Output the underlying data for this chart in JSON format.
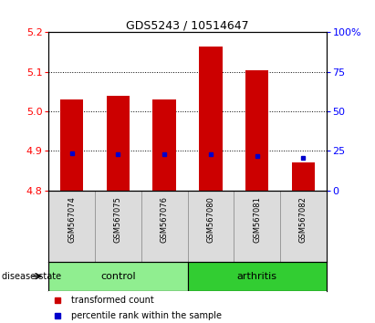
{
  "title": "GDS5243 / 10514647",
  "samples": [
    "GSM567074",
    "GSM567075",
    "GSM567076",
    "GSM567080",
    "GSM567081",
    "GSM567082"
  ],
  "red_bar_top": [
    5.03,
    5.04,
    5.03,
    5.165,
    5.105,
    4.872
  ],
  "red_bar_bottom": 4.8,
  "blue_marker_y": [
    4.895,
    4.892,
    4.892,
    4.892,
    4.887,
    4.883
  ],
  "ylim_left": [
    4.8,
    5.2
  ],
  "ylim_right": [
    0,
    100
  ],
  "yticks_left": [
    4.8,
    4.9,
    5.0,
    5.1,
    5.2
  ],
  "yticks_right": [
    0,
    25,
    50,
    75,
    100
  ],
  "ytick_labels_right": [
    "0",
    "25",
    "50",
    "75",
    "100%"
  ],
  "control_color": "#90EE90",
  "arthritis_color": "#32CD32",
  "group_label": "disease state",
  "bar_color": "#CC0000",
  "blue_color": "#0000CC",
  "label_red": "transformed count",
  "label_blue": "percentile rank within the sample",
  "bar_width": 0.5,
  "grid_yticks": [
    4.9,
    5.0,
    5.1
  ]
}
